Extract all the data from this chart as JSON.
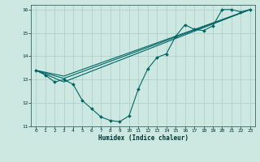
{
  "xlabel": "Humidex (Indice chaleur)",
  "background_color": "#cde8e0",
  "grid_color": "#aacccc",
  "line_color": "#006666",
  "xlim": [
    -0.5,
    23.5
  ],
  "ylim": [
    11,
    16.2
  ],
  "xticks": [
    0,
    1,
    2,
    3,
    4,
    5,
    6,
    7,
    8,
    9,
    10,
    11,
    12,
    13,
    14,
    15,
    16,
    17,
    18,
    19,
    20,
    21,
    22,
    23
  ],
  "yticks": [
    11,
    12,
    13,
    14,
    15,
    16
  ],
  "curve_main_x": [
    0,
    1,
    2,
    3,
    4,
    5,
    6,
    7,
    8,
    9,
    10,
    11,
    12,
    13,
    14,
    15,
    16,
    17,
    18,
    19,
    20,
    21,
    22,
    23
  ],
  "curve_main_y": [
    13.4,
    13.2,
    12.9,
    13.0,
    12.8,
    12.1,
    11.75,
    11.4,
    11.25,
    11.2,
    11.45,
    12.6,
    13.45,
    13.95,
    14.1,
    14.85,
    15.35,
    15.15,
    15.1,
    15.3,
    16.0,
    16.0,
    15.9,
    16.0
  ],
  "curve_line1_x": [
    0,
    3,
    23
  ],
  "curve_line1_y": [
    13.4,
    12.9,
    16.0
  ],
  "curve_line2_x": [
    0,
    3,
    23
  ],
  "curve_line2_y": [
    13.4,
    13.05,
    16.0
  ],
  "curve_line3_x": [
    0,
    3,
    23
  ],
  "curve_line3_y": [
    13.4,
    13.15,
    16.0
  ]
}
